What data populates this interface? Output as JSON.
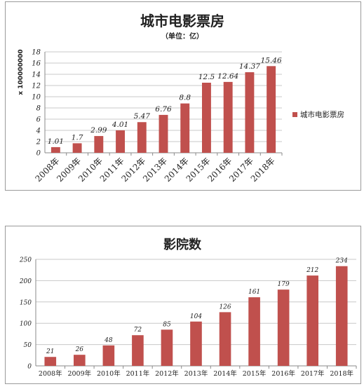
{
  "chart_data": [
    {
      "type": "bar",
      "title": "城市电影票房",
      "subtitle": "（单位：亿）",
      "ylabel": "x 100000000",
      "categories": [
        "2008年",
        "2009年",
        "2010年",
        "2011年",
        "2012年",
        "2013年",
        "2014年",
        "2015年",
        "2016年",
        "2017年",
        "2018年"
      ],
      "series": [
        {
          "name": "城市电影票房",
          "values": [
            1.01,
            1.7,
            2.99,
            4.01,
            5.47,
            6.76,
            8.8,
            12.5,
            12.64,
            14.37,
            15.46
          ]
        }
      ],
      "data_labels": [
        "1.01",
        "1.7",
        "2.99",
        "4.01",
        "5.47",
        "6.76",
        "8.8",
        "12.5",
        "12.64",
        "14.37",
        "15.46"
      ],
      "ylim": [
        0,
        18
      ],
      "yticks": [
        0,
        2,
        4,
        6,
        8,
        10,
        12,
        14,
        16,
        18
      ],
      "legend": "right",
      "grid": true,
      "bar_color": "#c0504d"
    },
    {
      "type": "bar",
      "title": "影院数",
      "categories": [
        "2008年",
        "2009年",
        "2010年",
        "2011年",
        "2012年",
        "2013年",
        "2014年",
        "2015年",
        "2016年",
        "2017年",
        "2018年"
      ],
      "series": [
        {
          "values": [
            21,
            26,
            48,
            72,
            85,
            104,
            126,
            161,
            179,
            212,
            234
          ]
        }
      ],
      "data_labels": [
        "21",
        "26",
        "48",
        "72",
        "85",
        "104",
        "126",
        "161",
        "179",
        "212",
        "234"
      ],
      "ylim": [
        0,
        250
      ],
      "yticks": [
        0,
        50,
        100,
        150,
        200,
        250
      ],
      "grid": true,
      "bar_color": "#c0504d"
    }
  ]
}
